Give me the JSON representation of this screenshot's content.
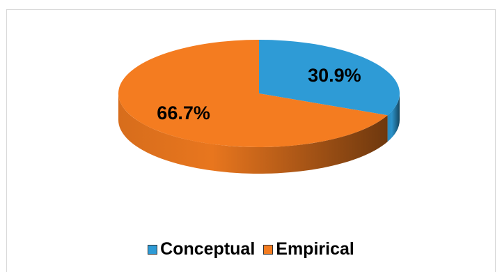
{
  "chart_data": {
    "type": "pie",
    "style": "3d",
    "title": "",
    "series": [
      {
        "name": "Conceptual",
        "value": 30.9,
        "label": "30.9%",
        "color": "#2e9bd6"
      },
      {
        "name": "Empirical",
        "value": 66.7,
        "label": "66.7%",
        "color": "#f47c20"
      }
    ],
    "legend_position": "bottom"
  }
}
